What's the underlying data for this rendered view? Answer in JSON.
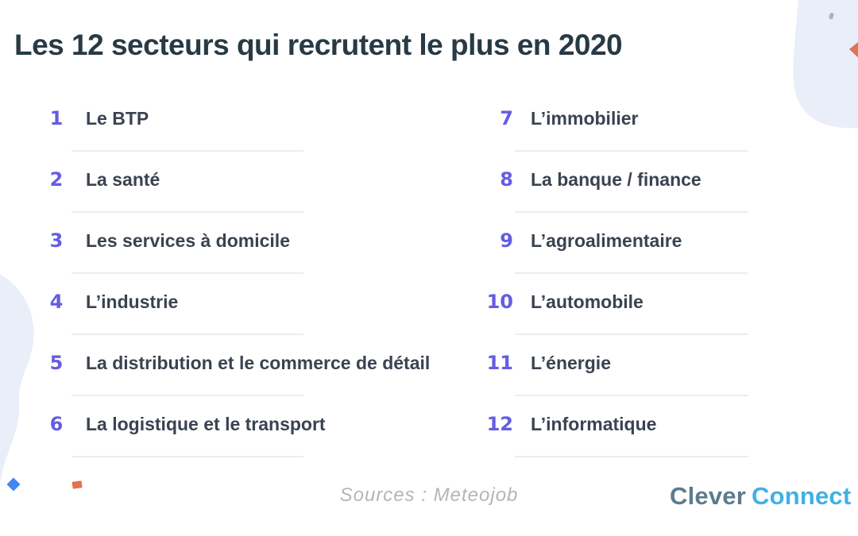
{
  "title": "Les 12 secteurs qui recrutent le plus en 2020",
  "list": {
    "left_items": [
      {
        "num": "1",
        "label": "Le BTP"
      },
      {
        "num": "2",
        "label": "La santé"
      },
      {
        "num": "3",
        "label": "Les services à domicile"
      },
      {
        "num": "4",
        "label": "L’industrie"
      },
      {
        "num": "5",
        "label": "La distribution et le commerce de détail"
      },
      {
        "num": "6",
        "label": "La logistique et le transport"
      }
    ],
    "right_items": [
      {
        "num": "7",
        "label": "L’immobilier"
      },
      {
        "num": "8",
        "label": "La banque / finance"
      },
      {
        "num": "9",
        "label": "L’agroalimentaire"
      },
      {
        "num": "10",
        "label": "L’automobile"
      },
      {
        "num": "11",
        "label": "L’énergie"
      },
      {
        "num": "12",
        "label": "L’informatique"
      }
    ]
  },
  "footer": {
    "source": "Sources : Meteojob",
    "logo_part1": "Clever",
    "logo_part2": "Connect"
  },
  "icons": [
    "blob-top-right",
    "blob-bottom-left",
    "gray-dot-icon",
    "orange-triangle-icon",
    "blue-diamond-icon",
    "orange-square-icon"
  ],
  "colors": {
    "accent_number": "#655ce5",
    "title_text": "#273a45",
    "item_text": "#3a4350",
    "divider": "#ededed",
    "blob": "#e9eef9",
    "source_text": "#b5b5b5",
    "logo_clever": "#5c7b8d",
    "logo_connect": "#41b1e3",
    "diamond_blue": "#4285f4",
    "square_orange": "#e2714d",
    "triangle_orange": "#df7355",
    "dot_gray": "#9aa7b8"
  }
}
